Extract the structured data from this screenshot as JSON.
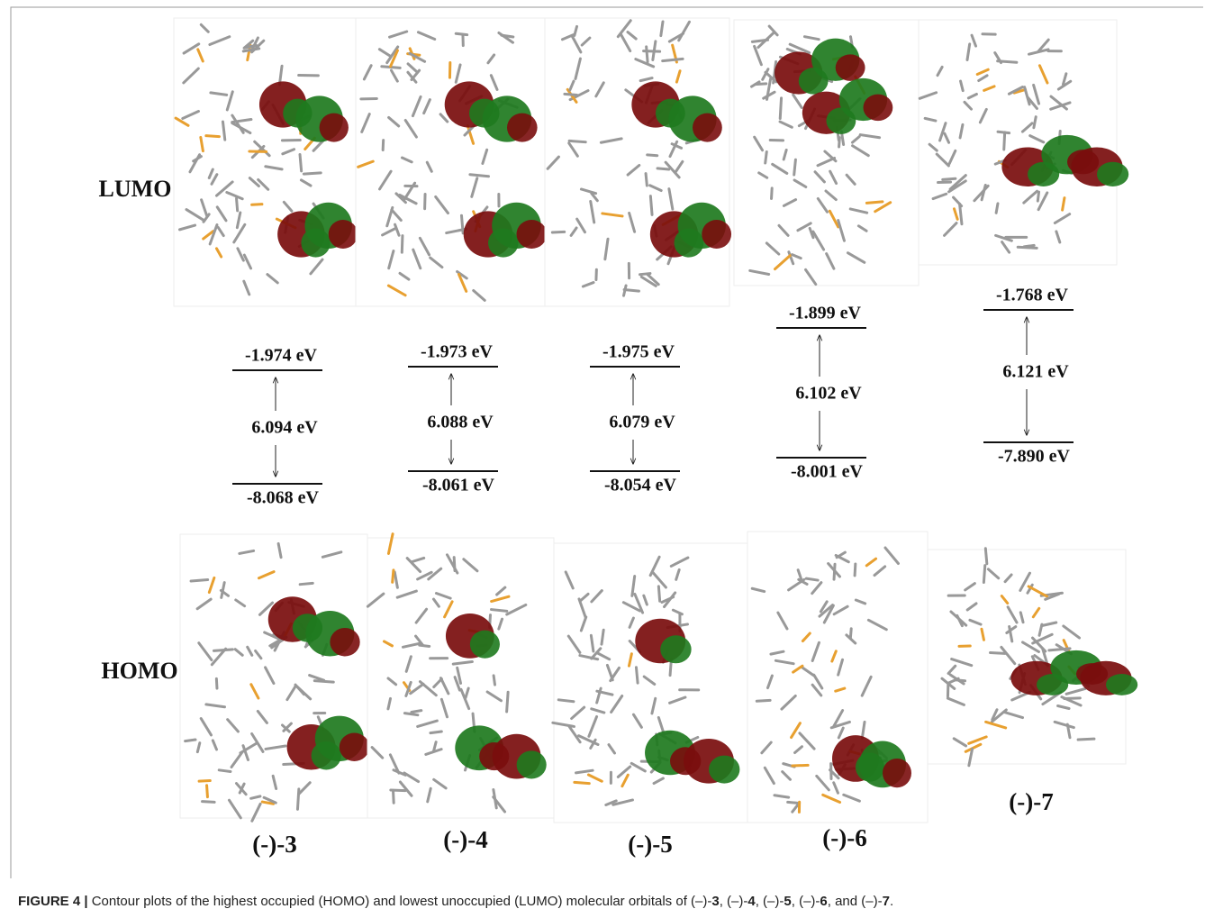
{
  "figure": {
    "row_labels": {
      "lumo": "LUMO",
      "homo": "HOMO"
    },
    "compounds": [
      {
        "name": "(-)-3",
        "lumo": "-1.974 eV",
        "gap": "6.094 eV",
        "homo": "-8.068 eV"
      },
      {
        "name": "(-)-4",
        "lumo": "-1.973 eV",
        "gap": "6.088 eV",
        "homo": "-8.061 eV"
      },
      {
        "name": "(-)-5",
        "lumo": "-1.975 eV",
        "gap": "6.079 eV",
        "homo": "-8.054 eV"
      },
      {
        "name": "(-)-6",
        "lumo": "-1.899 eV",
        "gap": "6.102 eV",
        "homo": "-8.001 eV"
      },
      {
        "name": "(-)-7",
        "lumo": "-1.768 eV",
        "gap": "6.121 eV",
        "homo": "-7.890 eV"
      }
    ],
    "caption": [
      {
        "text": "FIGURE 4 |",
        "bold": true
      },
      {
        "text": " Contour plots of the highest occupied (HOMO) and lowest unoccupied (LUMO) molecular orbitals of (–)-",
        "bold": false
      },
      {
        "text": "3",
        "bold": true
      },
      {
        "text": ", (–)-",
        "bold": false
      },
      {
        "text": "4",
        "bold": true
      },
      {
        "text": ", (–)-",
        "bold": false
      },
      {
        "text": "5",
        "bold": true
      },
      {
        "text": ", (–)-",
        "bold": false
      },
      {
        "text": "6",
        "bold": true
      },
      {
        "text": ", and (–)-",
        "bold": false
      },
      {
        "text": "7",
        "bold": true
      },
      {
        "text": ".",
        "bold": false
      }
    ]
  }
}
